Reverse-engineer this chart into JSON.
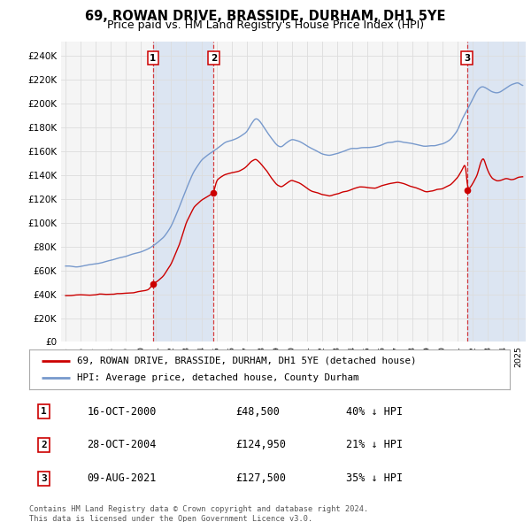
{
  "title": "69, ROWAN DRIVE, BRASSIDE, DURHAM, DH1 5YE",
  "subtitle": "Price paid vs. HM Land Registry's House Price Index (HPI)",
  "title_fontsize": 11,
  "subtitle_fontsize": 9,
  "background_color": "#ffffff",
  "plot_bg_color": "#f5f5f5",
  "grid_color": "#dddddd",
  "red_color": "#cc0000",
  "blue_color": "#7799cc",
  "shaded_color": "#c8d8f0",
  "yticks": [
    0,
    20000,
    40000,
    60000,
    80000,
    100000,
    120000,
    140000,
    160000,
    180000,
    200000,
    220000,
    240000
  ],
  "ytick_labels": [
    "£0",
    "£20K",
    "£40K",
    "£60K",
    "£80K",
    "£100K",
    "£120K",
    "£140K",
    "£160K",
    "£180K",
    "£200K",
    "£220K",
    "£240K"
  ],
  "xlim_start": 1994.7,
  "xlim_end": 2025.5,
  "ylim": [
    0,
    252000
  ],
  "sale_dates": [
    2000.79,
    2004.82,
    2021.6
  ],
  "sale_prices": [
    48500,
    124950,
    127500
  ],
  "sale_labels": [
    "1",
    "2",
    "3"
  ],
  "legend_entries": [
    "69, ROWAN DRIVE, BRASSIDE, DURHAM, DH1 5YE (detached house)",
    "HPI: Average price, detached house, County Durham"
  ],
  "table_rows": [
    {
      "label": "1",
      "date": "16-OCT-2000",
      "price": "£48,500",
      "hpi": "40% ↓ HPI"
    },
    {
      "label": "2",
      "date": "28-OCT-2004",
      "price": "£124,950",
      "hpi": "21% ↓ HPI"
    },
    {
      "label": "3",
      "date": "09-AUG-2021",
      "price": "£127,500",
      "hpi": "35% ↓ HPI"
    }
  ],
  "footer": "Contains HM Land Registry data © Crown copyright and database right 2024.\nThis data is licensed under the Open Government Licence v3.0."
}
